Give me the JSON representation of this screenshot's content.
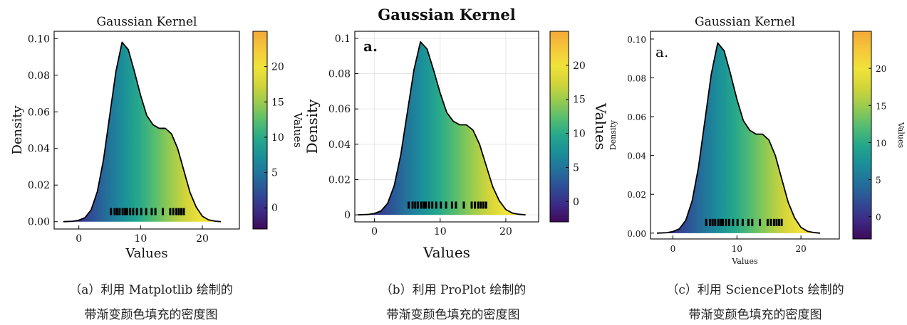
{
  "colors": {
    "colormap": [
      "#3e0a5a",
      "#3c2b86",
      "#2f4e96",
      "#23719b",
      "#1a8f99",
      "#26a88b",
      "#56bd6f",
      "#97cb4f",
      "#d2d43a",
      "#f0e33a",
      "#f5c83a",
      "#f3a838"
    ],
    "line": "#000000"
  },
  "chart_data": [
    {
      "type": "area",
      "title": "Gaussian Kernel",
      "panel_label": "",
      "xlabel": "Values",
      "ylabel": "Density",
      "xlim": [
        -4,
        26
      ],
      "ylim": [
        -0.004,
        0.104
      ],
      "xticks": [
        "0",
        "10",
        "20"
      ],
      "yticks": [
        "0.00",
        "0.02",
        "0.04",
        "0.06",
        "0.08",
        "0.10"
      ],
      "colorbar": {
        "label": "Values",
        "range": [
          -3,
          25
        ],
        "ticks": [
          "0",
          "5",
          "10",
          "15",
          "20"
        ]
      },
      "grid": false,
      "x": [
        -2.5,
        -1,
        0,
        1,
        2,
        3,
        4,
        5,
        6,
        7,
        8,
        9,
        10,
        11,
        12,
        13,
        14,
        15,
        16,
        17,
        18,
        19,
        20,
        21,
        22,
        23
      ],
      "density": [
        0.0,
        0.0002,
        0.0008,
        0.0022,
        0.0065,
        0.0165,
        0.034,
        0.058,
        0.082,
        0.098,
        0.094,
        0.082,
        0.069,
        0.058,
        0.053,
        0.051,
        0.051,
        0.048,
        0.04,
        0.028,
        0.016,
        0.008,
        0.003,
        0.001,
        0.0003,
        0.0
      ],
      "rug": [
        5.2,
        5.8,
        6.2,
        6.6,
        7.1,
        7.5,
        7.8,
        8.3,
        8.8,
        9.4,
        10.1,
        10.9,
        11.8,
        12.4,
        13.6,
        14.8,
        15.3,
        15.8,
        16.2,
        16.6,
        17.0
      ]
    },
    {
      "type": "area",
      "title": "Gaussian Kernel",
      "panel_label": "a.",
      "xlabel": "Values",
      "ylabel": "Density",
      "xlim": [
        -3,
        25
      ],
      "ylim": [
        -0.004,
        0.104
      ],
      "xticks": [
        "0",
        "10",
        "20"
      ],
      "yticks": [
        "0",
        "0.02",
        "0.04",
        "0.06",
        "0.08",
        "0.1"
      ],
      "colorbar": {
        "label": "Values",
        "range": [
          -3,
          25
        ],
        "ticks": [
          "0",
          "5",
          "10",
          "15",
          "20"
        ]
      },
      "grid": true,
      "x": [
        -2.5,
        -1,
        0,
        1,
        2,
        3,
        4,
        5,
        6,
        7,
        8,
        9,
        10,
        11,
        12,
        13,
        14,
        15,
        16,
        17,
        18,
        19,
        20,
        21,
        22,
        23
      ],
      "density": [
        0.0,
        0.0002,
        0.0008,
        0.0022,
        0.0065,
        0.0165,
        0.034,
        0.058,
        0.082,
        0.098,
        0.094,
        0.082,
        0.069,
        0.058,
        0.053,
        0.051,
        0.051,
        0.048,
        0.04,
        0.028,
        0.016,
        0.008,
        0.003,
        0.001,
        0.0003,
        0.0
      ],
      "rug": [
        5.2,
        5.8,
        6.2,
        6.6,
        7.1,
        7.5,
        7.8,
        8.3,
        8.8,
        9.4,
        10.1,
        10.9,
        11.8,
        12.4,
        13.6,
        14.8,
        15.3,
        15.8,
        16.2,
        16.6,
        17.0
      ]
    },
    {
      "type": "area",
      "title": "Gaussian Kernel",
      "panel_label": "a.",
      "xlabel": "Values",
      "ylabel": "Density",
      "xlim": [
        -3.5,
        26
      ],
      "ylim": [
        -0.003,
        0.104
      ],
      "xticks": [
        "0",
        "10",
        "20"
      ],
      "yticks": [
        "0.00",
        "0.02",
        "0.04",
        "0.06",
        "0.08",
        "0.10"
      ],
      "colorbar": {
        "label": "Values",
        "range": [
          -3,
          25
        ],
        "ticks": [
          "0",
          "5",
          "10",
          "15",
          "20"
        ]
      },
      "grid": false,
      "x": [
        -2.5,
        -1,
        0,
        1,
        2,
        3,
        4,
        5,
        6,
        7,
        8,
        9,
        10,
        11,
        12,
        13,
        14,
        15,
        16,
        17,
        18,
        19,
        20,
        21,
        22,
        23
      ],
      "density": [
        0.0,
        0.0002,
        0.0008,
        0.0022,
        0.0065,
        0.0165,
        0.034,
        0.058,
        0.082,
        0.098,
        0.094,
        0.082,
        0.069,
        0.058,
        0.053,
        0.051,
        0.051,
        0.048,
        0.04,
        0.028,
        0.016,
        0.008,
        0.003,
        0.001,
        0.0003,
        0.0
      ],
      "rug": [
        5.2,
        5.8,
        6.2,
        6.6,
        7.1,
        7.5,
        7.8,
        8.3,
        8.8,
        9.4,
        10.1,
        10.9,
        11.8,
        12.4,
        13.6,
        14.8,
        15.3,
        15.8,
        16.2,
        16.6,
        17.0
      ]
    }
  ],
  "captions": [
    {
      "line1": "（a）利用 Matplotlib 绘制的",
      "line2": "带渐变颜色填充的密度图"
    },
    {
      "line1": "（b）利用 ProPlot 绘制的",
      "line2": "带渐变颜色填充的密度图"
    },
    {
      "line1": "（c）利用 SciencePlots 绘制的",
      "line2": "带渐变颜色填充的密度图"
    }
  ]
}
